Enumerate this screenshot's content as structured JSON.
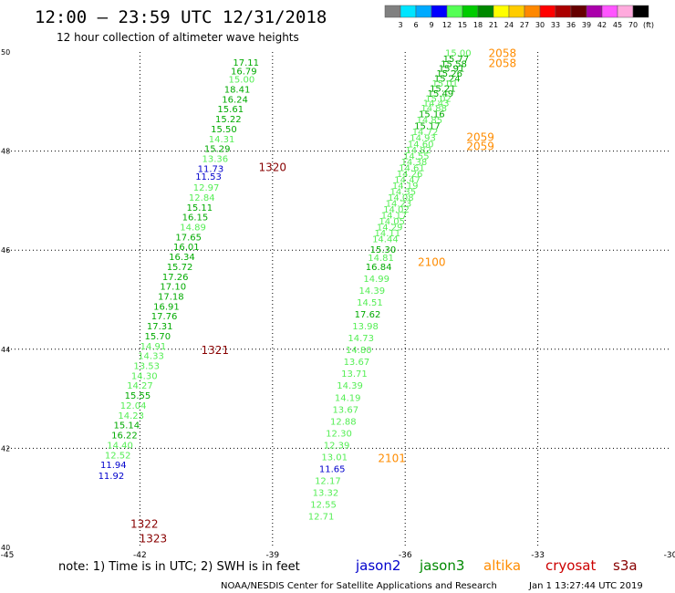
{
  "header": {
    "title": "12:00 – 23:59 UTC 12/31/2018",
    "subtitle": "12 hour collection of altimeter wave heights"
  },
  "colorbar": {
    "colors": [
      "#808080",
      "#00e5ff",
      "#00aaff",
      "#0000ff",
      "#55ff55",
      "#00cc00",
      "#008800",
      "#ffff00",
      "#ffcc00",
      "#ff8800",
      "#ff0000",
      "#aa0000",
      "#660000",
      "#aa00aa",
      "#ff55ff",
      "#ffaadd",
      "#000000"
    ],
    "labels": [
      "3",
      "6",
      "9",
      "12",
      "15",
      "18",
      "21",
      "24",
      "27",
      "30",
      "33",
      "36",
      "39",
      "42",
      "45",
      "70",
      "(ft)"
    ]
  },
  "footer": {
    "note": "note:  1) Time is in UTC;  2) SWH is in feet",
    "legend": [
      {
        "name": "jason2",
        "color": "#0000cc"
      },
      {
        "name": "jason3",
        "color": "#008800"
      },
      {
        "name": "altika",
        "color": "#ff8c00"
      },
      {
        "name": "cryosat",
        "color": "#cc0000"
      },
      {
        "name": "s3a",
        "color": "#880000"
      }
    ],
    "credit": "NOAA/NESDIS Center for Satellite Applications and Research",
    "timestamp": "Jan  1 13:27:44 UTC 2019"
  },
  "chart_data": {
    "type": "scatter",
    "xlim": [
      -45,
      -30
    ],
    "ylim": [
      40,
      50
    ],
    "xticks": [
      "-45",
      "-42",
      "-39",
      "-36",
      "-33",
      "-30"
    ],
    "yticks": [
      "40",
      "42",
      "44",
      "46",
      "48",
      "50"
    ],
    "grid": true,
    "series": [
      {
        "satellite": "jason3",
        "points": [
          {
            "x": -39.6,
            "y": 49.72,
            "v": "17.11",
            "c": "#00aa00"
          },
          {
            "x": -39.65,
            "y": 49.55,
            "v": "16.79",
            "c": "#00aa00"
          },
          {
            "x": -39.7,
            "y": 49.38,
            "v": "15.00",
            "c": "#55ee55"
          },
          {
            "x": -39.8,
            "y": 49.18,
            "v": "18.41",
            "c": "#00aa00"
          },
          {
            "x": -39.85,
            "y": 48.98,
            "v": "16.24",
            "c": "#00aa00"
          },
          {
            "x": -39.95,
            "y": 48.78,
            "v": "15.61",
            "c": "#00aa00"
          },
          {
            "x": -40.0,
            "y": 48.58,
            "v": "15.22",
            "c": "#00aa00"
          },
          {
            "x": -40.1,
            "y": 48.38,
            "v": "15.50",
            "c": "#00aa00"
          },
          {
            "x": -40.15,
            "y": 48.18,
            "v": "14.31",
            "c": "#55ee55"
          },
          {
            "x": -40.25,
            "y": 47.98,
            "v": "15.29",
            "c": "#00aa00"
          },
          {
            "x": -40.3,
            "y": 47.78,
            "v": "13.36",
            "c": "#55ee55"
          },
          {
            "x": -40.4,
            "y": 47.58,
            "v": "11.73",
            "c": "#0000cc"
          },
          {
            "x": -40.45,
            "y": 47.42,
            "v": "11.53",
            "c": "#0000cc"
          },
          {
            "x": -40.5,
            "y": 47.2,
            "v": "12.97",
            "c": "#55ee55"
          },
          {
            "x": -40.6,
            "y": 47.0,
            "v": "12.84",
            "c": "#55ee55"
          },
          {
            "x": -40.65,
            "y": 46.8,
            "v": "15.11",
            "c": "#00aa00"
          },
          {
            "x": -40.75,
            "y": 46.6,
            "v": "16.15",
            "c": "#00aa00"
          },
          {
            "x": -40.8,
            "y": 46.4,
            "v": "14.89",
            "c": "#55ee55"
          },
          {
            "x": -40.9,
            "y": 46.2,
            "v": "17.65",
            "c": "#00aa00"
          },
          {
            "x": -40.95,
            "y": 46.0,
            "v": "16.01",
            "c": "#00aa00"
          },
          {
            "x": -41.05,
            "y": 45.8,
            "v": "16.34",
            "c": "#00aa00"
          },
          {
            "x": -41.1,
            "y": 45.6,
            "v": "15.72",
            "c": "#00aa00"
          },
          {
            "x": -41.2,
            "y": 45.4,
            "v": "17.26",
            "c": "#00aa00"
          },
          {
            "x": -41.25,
            "y": 45.2,
            "v": "17.10",
            "c": "#00aa00"
          },
          {
            "x": -41.3,
            "y": 45.0,
            "v": "17.18",
            "c": "#00aa00"
          },
          {
            "x": -41.4,
            "y": 44.8,
            "v": "16.91",
            "c": "#00aa00"
          },
          {
            "x": -41.45,
            "y": 44.6,
            "v": "17.76",
            "c": "#00aa00"
          },
          {
            "x": -41.55,
            "y": 44.4,
            "v": "17.31",
            "c": "#00aa00"
          },
          {
            "x": -41.6,
            "y": 44.2,
            "v": "15.70",
            "c": "#00aa00"
          },
          {
            "x": -41.7,
            "y": 44.0,
            "v": "14.91",
            "c": "#55ee55"
          },
          {
            "x": -41.75,
            "y": 43.8,
            "v": "14.33",
            "c": "#55ee55"
          },
          {
            "x": -41.85,
            "y": 43.6,
            "v": "13.53",
            "c": "#55ee55"
          },
          {
            "x": -41.9,
            "y": 43.4,
            "v": "14.30",
            "c": "#55ee55"
          },
          {
            "x": -42.0,
            "y": 43.2,
            "v": "14.27",
            "c": "#55ee55"
          },
          {
            "x": -42.05,
            "y": 43.0,
            "v": "15.55",
            "c": "#00aa00"
          },
          {
            "x": -42.15,
            "y": 42.8,
            "v": "12.04",
            "c": "#55ee55"
          },
          {
            "x": -42.2,
            "y": 42.6,
            "v": "14.23",
            "c": "#55ee55"
          },
          {
            "x": -42.3,
            "y": 42.4,
            "v": "15.14",
            "c": "#00aa00"
          },
          {
            "x": -42.35,
            "y": 42.2,
            "v": "16.22",
            "c": "#00aa00"
          },
          {
            "x": -42.45,
            "y": 42.0,
            "v": "14.40",
            "c": "#55ee55"
          },
          {
            "x": -42.5,
            "y": 41.8,
            "v": "12.52",
            "c": "#55ee55"
          },
          {
            "x": -42.6,
            "y": 41.6,
            "v": "11.94",
            "c": "#0000cc"
          },
          {
            "x": -42.65,
            "y": 41.38,
            "v": "11.92",
            "c": "#0000cc"
          }
        ]
      },
      {
        "satellite": "jason3",
        "points": [
          {
            "x": -34.8,
            "y": 49.92,
            "v": "15.00",
            "c": "#55ee55"
          },
          {
            "x": -34.85,
            "y": 49.8,
            "v": "15.77",
            "c": "#00aa00"
          },
          {
            "x": -34.9,
            "y": 49.7,
            "v": "15.58",
            "c": "#00aa00"
          },
          {
            "x": -34.95,
            "y": 49.6,
            "v": "15.91",
            "c": "#00aa00"
          },
          {
            "x": -35.0,
            "y": 49.5,
            "v": "15.26",
            "c": "#00aa00"
          },
          {
            "x": -35.05,
            "y": 49.4,
            "v": "15.24",
            "c": "#00aa00"
          },
          {
            "x": -35.1,
            "y": 49.3,
            "v": "15.01",
            "c": "#55ee55"
          },
          {
            "x": -35.15,
            "y": 49.2,
            "v": "15.21",
            "c": "#00aa00"
          },
          {
            "x": -35.2,
            "y": 49.1,
            "v": "15.49",
            "c": "#00aa00"
          },
          {
            "x": -35.25,
            "y": 49.0,
            "v": "15.02",
            "c": "#55ee55"
          },
          {
            "x": -35.3,
            "y": 48.9,
            "v": "14.43",
            "c": "#55ee55"
          },
          {
            "x": -35.35,
            "y": 48.8,
            "v": "14.88",
            "c": "#55ee55"
          },
          {
            "x": -35.4,
            "y": 48.68,
            "v": "15.16",
            "c": "#00aa00"
          },
          {
            "x": -35.45,
            "y": 48.56,
            "v": "14.85",
            "c": "#55ee55"
          },
          {
            "x": -35.5,
            "y": 48.44,
            "v": "15.17",
            "c": "#00aa00"
          },
          {
            "x": -35.55,
            "y": 48.32,
            "v": "14.72",
            "c": "#55ee55"
          },
          {
            "x": -35.6,
            "y": 48.2,
            "v": "14.93",
            "c": "#55ee55"
          },
          {
            "x": -35.65,
            "y": 48.08,
            "v": "14.60",
            "c": "#55ee55"
          },
          {
            "x": -35.7,
            "y": 47.96,
            "v": "14.82",
            "c": "#55ee55"
          },
          {
            "x": -35.75,
            "y": 47.84,
            "v": "14.55",
            "c": "#55ee55"
          },
          {
            "x": -35.8,
            "y": 47.72,
            "v": "14.38",
            "c": "#55ee55"
          },
          {
            "x": -35.85,
            "y": 47.6,
            "v": "14.61",
            "c": "#55ee55"
          },
          {
            "x": -35.9,
            "y": 47.48,
            "v": "14.26",
            "c": "#55ee55"
          },
          {
            "x": -35.95,
            "y": 47.36,
            "v": "14.47",
            "c": "#55ee55"
          },
          {
            "x": -36.0,
            "y": 47.24,
            "v": "14.19",
            "c": "#55ee55"
          },
          {
            "x": -36.05,
            "y": 47.12,
            "v": "14.35",
            "c": "#55ee55"
          },
          {
            "x": -36.1,
            "y": 47.0,
            "v": "14.08",
            "c": "#55ee55"
          },
          {
            "x": -36.15,
            "y": 46.88,
            "v": "14.23",
            "c": "#55ee55"
          },
          {
            "x": -36.2,
            "y": 46.76,
            "v": "14.02",
            "c": "#55ee55"
          },
          {
            "x": -36.25,
            "y": 46.64,
            "v": "14.17",
            "c": "#55ee55"
          },
          {
            "x": -36.3,
            "y": 46.52,
            "v": "14.05",
            "c": "#55ee55"
          },
          {
            "x": -36.35,
            "y": 46.4,
            "v": "14.29",
            "c": "#55ee55"
          },
          {
            "x": -36.4,
            "y": 46.28,
            "v": "14.11",
            "c": "#55ee55"
          },
          {
            "x": -36.45,
            "y": 46.16,
            "v": "14.44",
            "c": "#55ee55"
          },
          {
            "x": -36.5,
            "y": 45.95,
            "v": "15.30",
            "c": "#00aa00"
          },
          {
            "x": -36.55,
            "y": 45.78,
            "v": "14.81",
            "c": "#55ee55"
          },
          {
            "x": -36.6,
            "y": 45.6,
            "v": "16.84",
            "c": "#00aa00"
          },
          {
            "x": -36.65,
            "y": 45.36,
            "v": "14.99",
            "c": "#55ee55"
          },
          {
            "x": -36.75,
            "y": 45.12,
            "v": "14.39",
            "c": "#55ee55"
          },
          {
            "x": -36.8,
            "y": 44.88,
            "v": "14.51",
            "c": "#55ee55"
          },
          {
            "x": -36.85,
            "y": 44.64,
            "v": "17.62",
            "c": "#00aa00"
          },
          {
            "x": -36.9,
            "y": 44.4,
            "v": "13.98",
            "c": "#55ee55"
          },
          {
            "x": -37.0,
            "y": 44.16,
            "v": "14.73",
            "c": "#55ee55"
          },
          {
            "x": -37.05,
            "y": 43.92,
            "v": "14.80",
            "c": "#55ee55"
          },
          {
            "x": -37.1,
            "y": 43.68,
            "v": "13.67",
            "c": "#55ee55"
          },
          {
            "x": -37.15,
            "y": 43.44,
            "v": "13.71",
            "c": "#55ee55"
          },
          {
            "x": -37.25,
            "y": 43.2,
            "v": "14.39",
            "c": "#55ee55"
          },
          {
            "x": -37.3,
            "y": 42.96,
            "v": "14.19",
            "c": "#55ee55"
          },
          {
            "x": -37.35,
            "y": 42.72,
            "v": "13.67",
            "c": "#55ee55"
          },
          {
            "x": -37.4,
            "y": 42.48,
            "v": "12.88",
            "c": "#55ee55"
          },
          {
            "x": -37.5,
            "y": 42.24,
            "v": "12.30",
            "c": "#55ee55"
          },
          {
            "x": -37.55,
            "y": 42.0,
            "v": "12.39",
            "c": "#55ee55"
          },
          {
            "x": -37.6,
            "y": 41.76,
            "v": "13.01",
            "c": "#55ee55"
          },
          {
            "x": -37.65,
            "y": 41.52,
            "v": "11.65",
            "c": "#0000cc"
          },
          {
            "x": -37.75,
            "y": 41.28,
            "v": "12.17",
            "c": "#55ee55"
          },
          {
            "x": -37.8,
            "y": 41.04,
            "v": "13.32",
            "c": "#55ee55"
          },
          {
            "x": -37.85,
            "y": 40.8,
            "v": "12.55",
            "c": "#55ee55"
          },
          {
            "x": -37.9,
            "y": 40.56,
            "v": "12.71",
            "c": "#55ee55"
          }
        ]
      }
    ],
    "time_labels": [
      {
        "x": -39.0,
        "y": 47.6,
        "t": "1320",
        "c": "#880000"
      },
      {
        "x": -40.3,
        "y": 43.9,
        "t": "1321",
        "c": "#880000"
      },
      {
        "x": -41.9,
        "y": 40.4,
        "t": "1322",
        "c": "#880000"
      },
      {
        "x": -41.7,
        "y": 40.1,
        "t": "1323",
        "c": "#880000"
      },
      {
        "x": -33.8,
        "y": 49.9,
        "t": "2058",
        "c": "#ff8c00"
      },
      {
        "x": -33.8,
        "y": 49.7,
        "t": "2058",
        "c": "#ff8c00"
      },
      {
        "x": -34.3,
        "y": 48.2,
        "t": "2059",
        "c": "#ff8c00"
      },
      {
        "x": -34.3,
        "y": 48.02,
        "t": "2059",
        "c": "#ff8c00"
      },
      {
        "x": -35.4,
        "y": 45.68,
        "t": "2100",
        "c": "#ff8c00"
      },
      {
        "x": -36.3,
        "y": 41.72,
        "t": "2101",
        "c": "#ff8c00"
      }
    ]
  }
}
